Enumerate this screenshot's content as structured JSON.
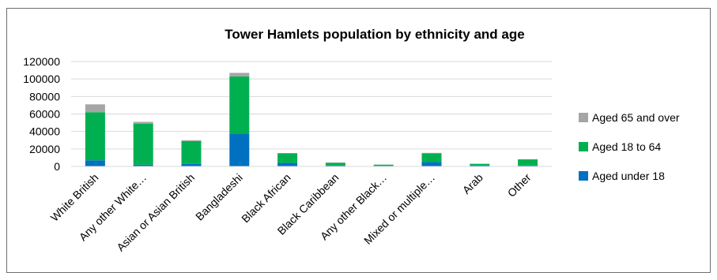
{
  "chart_data": {
    "type": "bar",
    "stacked": true,
    "title": "Tower Hamlets population by ethnicity and age",
    "categories": [
      "White British",
      "Any other White…",
      "Asian or Asian British",
      "Bangladeshi",
      "Black African",
      "Black Caribbean",
      "Any other Black…",
      "Mixed or multiple…",
      "Arab",
      "Other"
    ],
    "series": [
      {
        "name": "Aged under 18",
        "color": "#0070C0",
        "values": [
          7000,
          2000,
          3000,
          37000,
          4000,
          1000,
          500,
          5000,
          1000,
          1000
        ]
      },
      {
        "name": "Aged 18 to 64",
        "color": "#00B050",
        "values": [
          55000,
          47000,
          26000,
          66000,
          11000,
          3000,
          1500,
          10000,
          2000,
          7000
        ]
      },
      {
        "name": "Aged 65 and over",
        "color": "#A5A5A5",
        "values": [
          9000,
          2000,
          1000,
          4000,
          300,
          500,
          100,
          500,
          100,
          300
        ]
      }
    ],
    "ylim": [
      0,
      120000
    ],
    "yticks": [
      0,
      20000,
      40000,
      60000,
      80000,
      100000,
      120000
    ],
    "grid": true,
    "legend_position": "right"
  }
}
